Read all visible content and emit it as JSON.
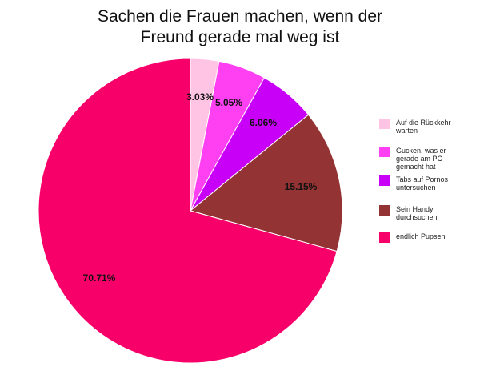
{
  "title": {
    "line1": "Sachen die Frauen machen, wenn der",
    "line2": "Freund gerade mal weg ist"
  },
  "chart_data": {
    "type": "pie",
    "title": "Sachen die Frauen machen, wenn der Freund gerade mal weg ist",
    "legend_position": "right",
    "start": "top, clockwise",
    "slices": [
      {
        "label": "Auf die Rückkehr warten",
        "value": 3.03,
        "display": "3.03%",
        "color": "#ffc4e4"
      },
      {
        "label": "Gucken, was er gerade am PC gemacht hat",
        "value": 5.05,
        "display": "5.05%",
        "color": "#ff40f2"
      },
      {
        "label": "Tabs auf Pornos untersuchen",
        "value": 6.06,
        "display": "6.06%",
        "color": "#c800f8"
      },
      {
        "label": "Sein Handy durchsuchen",
        "value": 15.15,
        "display": "15.15%",
        "color": "#933333"
      },
      {
        "label": "endlich Pupsen",
        "value": 70.71,
        "display": "70.71%",
        "color": "#f8006a"
      }
    ]
  }
}
